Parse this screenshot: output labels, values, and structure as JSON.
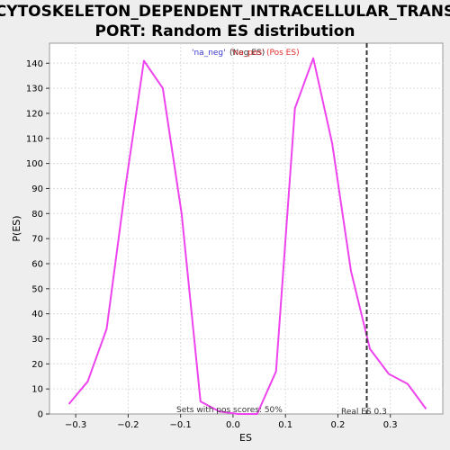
{
  "chart_data": {
    "type": "line",
    "title_line1": "CYTOSKELETON_DEPENDENT_INTRACELLULAR_TRANS",
    "title_line2": "PORT: Random ES distribution",
    "xlabel": "ES",
    "ylabel": "P(ES)",
    "xlim": [
      -0.35,
      0.4
    ],
    "ylim": [
      0,
      148
    ],
    "x_ticks": [
      -0.3,
      -0.2,
      -0.1,
      0.0,
      0.1,
      0.2,
      0.3
    ],
    "x_tick_labels": [
      "−0.3",
      "−0.2",
      "−0.1",
      "0.0",
      "0.1",
      "0.2",
      "0.3"
    ],
    "y_ticks": [
      0,
      10,
      20,
      30,
      40,
      50,
      60,
      70,
      80,
      90,
      100,
      110,
      120,
      130,
      140
    ],
    "grid": true,
    "series": [
      {
        "color": "#ee44ee",
        "x": [
          -0.313,
          -0.277,
          -0.241,
          -0.205,
          -0.17,
          -0.134,
          -0.098,
          -0.062,
          -0.026,
          0.01,
          0.046,
          0.082,
          0.118,
          0.153,
          0.189,
          0.225,
          0.261,
          0.297,
          0.333,
          0.368
        ],
        "y": [
          4,
          13,
          34,
          91,
          141,
          130,
          80,
          5,
          1,
          0,
          0,
          17,
          122,
          142,
          108,
          57,
          26,
          16,
          12,
          2
        ]
      }
    ],
    "real_es": 0.255,
    "real_es_label": "Real ES 0.3",
    "annotation": "Sets with pos scores: 50%",
    "legend": {
      "neg": "'na_neg'",
      "neg_suffix": "(Neg ES)",
      "pos": "'na_pos'",
      "pos_suffix": "(Pos ES)"
    },
    "colors": {
      "line": "#ee44ee",
      "real_es_line": "#333333",
      "grid": "#dddddd",
      "plot_bg": "#ffffff",
      "page_bg": "#eeeeee"
    }
  }
}
